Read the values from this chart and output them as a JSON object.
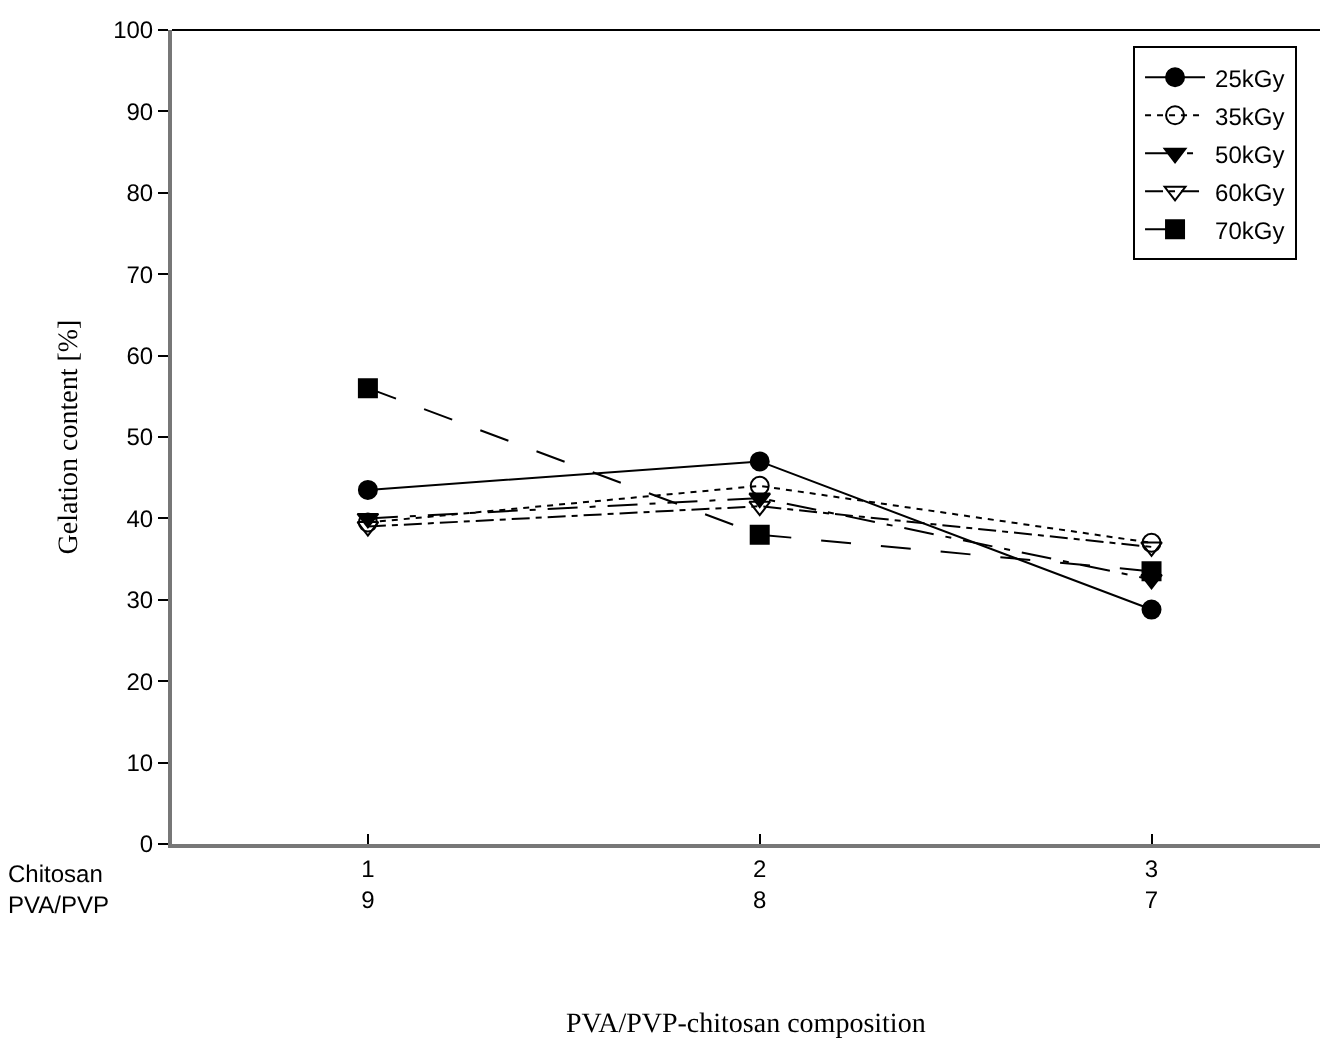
{
  "chart_data": {
    "type": "line",
    "xlabel": "PVA/PVP-chitosan composition",
    "ylabel": "Gelation content [%]",
    "categories": [
      "1\n9",
      "2\n8",
      "3\n7"
    ],
    "ylim": [
      0,
      100
    ],
    "yticks": [
      0,
      10,
      20,
      30,
      40,
      50,
      60,
      70,
      80,
      90,
      100
    ],
    "annotations": [
      "Chitosan\nPVA/PVP"
    ],
    "grid": false,
    "legend": "top right",
    "series": [
      {
        "name": "25kGy",
        "color": "#000000",
        "marker": "circle",
        "line_style": "solid",
        "values": [
          43.5,
          47,
          28.8
        ]
      },
      {
        "name": "35kGy",
        "color": "#000000",
        "marker": "circle-open",
        "line_style": "dotted",
        "values": [
          39.5,
          44,
          37
        ]
      },
      {
        "name": "50kGy",
        "color": "#000000",
        "marker": "triangle-down",
        "line_style": "dashed",
        "values": [
          40,
          42.5,
          32.5
        ]
      },
      {
        "name": "60kGy",
        "color": "#000000",
        "marker": "triangle-down-open",
        "line_style": "dashdot",
        "values": [
          39,
          41.5,
          36.5
        ]
      },
      {
        "name": "70kGy",
        "color": "#000000",
        "marker": "square",
        "line_style": "longdash",
        "values": [
          56,
          38,
          33.5
        ]
      }
    ]
  }
}
